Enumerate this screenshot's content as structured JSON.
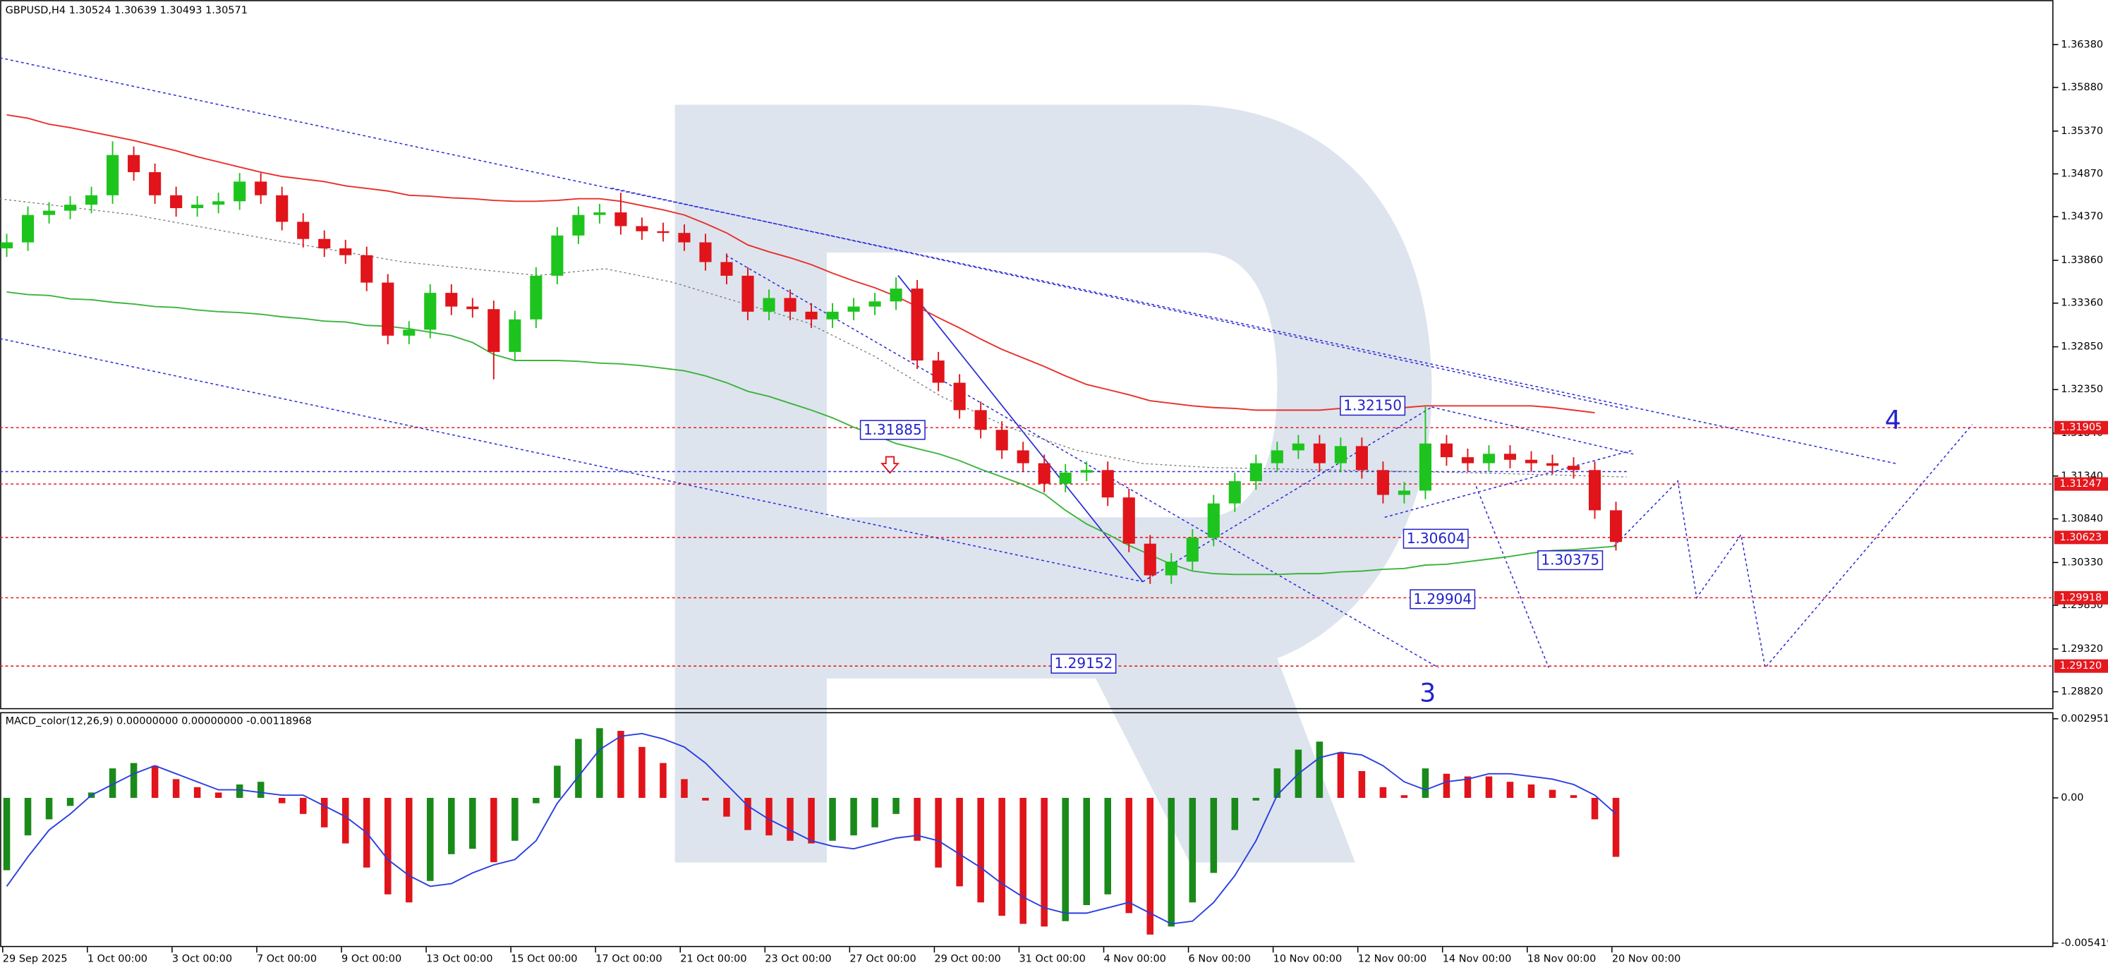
{
  "chart_data": [
    {
      "type": "candlestick",
      "title": "GBPUSD,H4  1.30524 1.30639 1.30493 1.30571",
      "categories": [
        "29 Sep 2025",
        null,
        null,
        null,
        "1 Oct 00:00",
        null,
        null,
        null,
        "3 Oct 00:00",
        null,
        null,
        null,
        "7 Oct 00:00",
        null,
        null,
        null,
        "9 Oct 00:00",
        null,
        null,
        null,
        "13 Oct 00:00",
        null,
        null,
        null,
        "15 Oct 00:00",
        null,
        null,
        null,
        "17 Oct 00:00",
        null,
        null,
        null,
        "21 Oct 00:00",
        null,
        null,
        null,
        "23 Oct 00:00",
        null,
        null,
        null,
        "27 Oct 00:00",
        null,
        null,
        null,
        "29 Oct 00:00",
        null,
        null,
        null,
        "31 Oct 00:00",
        null,
        null,
        null,
        "4 Nov 00:00",
        null,
        null,
        null,
        "6 Nov 00:00",
        null,
        null,
        null,
        "10 Nov 00:00",
        null,
        null,
        null,
        "12 Nov 00:00",
        null,
        null,
        null,
        "14 Nov 00:00",
        null,
        null,
        null,
        "18 Nov 00:00",
        null,
        null,
        null,
        "20 Nov 00:00"
      ],
      "open": [
        1.34,
        1.3407,
        1.3439,
        1.3444,
        1.3451,
        1.3462,
        1.3509,
        1.3489,
        1.3462,
        1.3447,
        1.3451,
        1.3455,
        1.3478,
        1.3462,
        1.3431,
        1.3411,
        1.34,
        1.3392,
        1.336,
        1.3298,
        1.3305,
        1.3348,
        1.3332,
        1.3329,
        1.3279,
        1.3317,
        1.3368,
        1.3415,
        1.3439,
        1.3442,
        1.3426,
        1.342,
        1.3418,
        1.3407,
        1.3384,
        1.3368,
        1.3326,
        1.3342,
        1.3326,
        1.3317,
        1.3326,
        1.3332,
        1.3338,
        1.3353,
        1.3269,
        1.3243,
        1.3211,
        1.3188,
        1.3164,
        1.3149,
        1.3125,
        1.3138,
        1.3141,
        1.3109,
        1.3055,
        1.3018,
        1.3034,
        1.3062,
        1.3102,
        1.3128,
        1.3149,
        1.3164,
        1.3172,
        1.3149,
        1.3169,
        1.3141,
        1.3112,
        1.3117,
        1.3172,
        1.3156,
        1.3149,
        1.316,
        1.3153,
        1.3149,
        1.3146,
        1.3141,
        1.3094
      ],
      "high": [
        1.3417,
        1.3449,
        1.3454,
        1.3461,
        1.3472,
        1.3525,
        1.3519,
        1.3499,
        1.3472,
        1.3461,
        1.3465,
        1.3488,
        1.3488,
        1.3472,
        1.3441,
        1.3421,
        1.341,
        1.3402,
        1.337,
        1.3315,
        1.3358,
        1.3358,
        1.3342,
        1.3339,
        1.3327,
        1.3378,
        1.3425,
        1.3449,
        1.3452,
        1.3465,
        1.3436,
        1.343,
        1.3428,
        1.3417,
        1.3394,
        1.3378,
        1.3352,
        1.3352,
        1.3336,
        1.3336,
        1.3342,
        1.3348,
        1.3366,
        1.3363,
        1.3279,
        1.3253,
        1.3221,
        1.3198,
        1.3174,
        1.3159,
        1.3148,
        1.3151,
        1.3151,
        1.3119,
        1.3065,
        1.3044,
        1.3072,
        1.3112,
        1.3138,
        1.3159,
        1.3174,
        1.3182,
        1.3182,
        1.3179,
        1.3179,
        1.3151,
        1.3127,
        1.3215,
        1.3182,
        1.3166,
        1.317,
        1.317,
        1.3163,
        1.3159,
        1.3156,
        1.3151,
        1.3104
      ],
      "low": [
        1.339,
        1.3397,
        1.3429,
        1.3434,
        1.3441,
        1.3452,
        1.3479,
        1.3452,
        1.3437,
        1.3437,
        1.3441,
        1.3445,
        1.3452,
        1.3421,
        1.3401,
        1.339,
        1.3382,
        1.335,
        1.3288,
        1.3288,
        1.3295,
        1.3322,
        1.3319,
        1.3247,
        1.3269,
        1.3307,
        1.3358,
        1.3405,
        1.3429,
        1.3416,
        1.341,
        1.3408,
        1.3397,
        1.3374,
        1.3358,
        1.3316,
        1.3316,
        1.3316,
        1.3307,
        1.3307,
        1.3316,
        1.3322,
        1.3328,
        1.3259,
        1.3233,
        1.3201,
        1.3178,
        1.3154,
        1.3139,
        1.3115,
        1.3115,
        1.3128,
        1.3099,
        1.3045,
        1.3008,
        1.3008,
        1.3024,
        1.3052,
        1.3092,
        1.3118,
        1.3139,
        1.3154,
        1.3139,
        1.3139,
        1.3131,
        1.3102,
        1.3102,
        1.3107,
        1.3146,
        1.3139,
        1.3139,
        1.3143,
        1.3139,
        1.3136,
        1.3131,
        1.3084,
        1.3047
      ],
      "close": [
        1.3407,
        1.3439,
        1.3444,
        1.3451,
        1.3462,
        1.3509,
        1.3489,
        1.3462,
        1.3447,
        1.3451,
        1.3455,
        1.3478,
        1.3462,
        1.3431,
        1.3411,
        1.34,
        1.3392,
        1.336,
        1.3298,
        1.3305,
        1.3348,
        1.3332,
        1.3329,
        1.3279,
        1.3317,
        1.3368,
        1.3415,
        1.3439,
        1.3442,
        1.3426,
        1.342,
        1.3418,
        1.3407,
        1.3384,
        1.3368,
        1.3326,
        1.3342,
        1.3326,
        1.3317,
        1.3326,
        1.3332,
        1.3338,
        1.3353,
        1.3269,
        1.3243,
        1.3211,
        1.3188,
        1.3164,
        1.3149,
        1.3125,
        1.3138,
        1.3141,
        1.3109,
        1.3055,
        1.3018,
        1.3034,
        1.3062,
        1.3102,
        1.3128,
        1.3149,
        1.3164,
        1.3172,
        1.3149,
        1.3169,
        1.3141,
        1.3112,
        1.3117,
        1.3172,
        1.3156,
        1.3149,
        1.316,
        1.3153,
        1.3149,
        1.3146,
        1.3141,
        1.3094,
        1.3057
      ],
      "up_color": "#1ec41e",
      "down_color": "#e0141a",
      "lines": [
        {
          "color": "#e8302a",
          "values": [
            1.3556,
            1.3552,
            1.3545,
            1.3541,
            1.3536,
            1.3531,
            1.3526,
            1.352,
            1.3514,
            1.3507,
            1.3501,
            1.3495,
            1.3489,
            1.3484,
            1.3481,
            1.3478,
            1.3473,
            1.347,
            1.3467,
            1.3462,
            1.3461,
            1.3459,
            1.3458,
            1.3456,
            1.3455,
            1.3455,
            1.3456,
            1.3458,
            1.3458,
            1.3455,
            1.345,
            1.3445,
            1.3439,
            1.3429,
            1.3418,
            1.3404,
            1.3396,
            1.3389,
            1.3381,
            1.3371,
            1.3362,
            1.3354,
            1.3344,
            1.3332,
            1.3319,
            1.3307,
            1.3294,
            1.3282,
            1.3272,
            1.3262,
            1.3251,
            1.3241,
            1.3235,
            1.3229,
            1.3222,
            1.3219,
            1.3216,
            1.3214,
            1.3213,
            1.3211,
            1.3211,
            1.3211,
            1.3211,
            1.3213,
            1.3213,
            1.3214,
            1.3214,
            1.3216,
            1.3216,
            1.3216,
            1.3216,
            1.3216,
            1.3216,
            1.3214,
            1.3211,
            1.3208,
            null
          ]
        },
        {
          "color": "#3cb43c",
          "values": [
            1.3349,
            1.3346,
            1.3345,
            1.3341,
            1.334,
            1.3337,
            1.3335,
            1.3332,
            1.3331,
            1.3328,
            1.3326,
            1.3325,
            1.3323,
            1.332,
            1.3318,
            1.3315,
            1.3314,
            1.331,
            1.3309,
            1.3306,
            1.3302,
            1.3298,
            1.329,
            1.3276,
            1.3269,
            1.3269,
            1.3269,
            1.3268,
            1.3266,
            1.3265,
            1.3263,
            1.326,
            1.3257,
            1.3251,
            1.3243,
            1.3233,
            1.3227,
            1.3219,
            1.3211,
            1.3202,
            1.3191,
            1.3182,
            1.3172,
            1.3166,
            1.316,
            1.3152,
            1.3142,
            1.3133,
            1.3124,
            1.3113,
            1.3094,
            1.3078,
            1.3066,
            1.3053,
            1.3042,
            1.3031,
            1.3023,
            1.302,
            1.3019,
            1.3019,
            1.3019,
            1.302,
            1.302,
            1.3022,
            1.3023,
            1.3025,
            1.3026,
            1.303,
            1.3031,
            1.3034,
            1.3037,
            1.304,
            1.3044,
            1.3047,
            1.3048,
            1.305,
            1.3052
          ]
        }
      ],
      "ylim": [
        1.2863,
        1.3687
      ],
      "yticks": [
        {
          "value": 1.3638,
          "label": "1.36380"
        },
        {
          "value": 1.3588,
          "label": "1.35880"
        },
        {
          "value": 1.3537,
          "label": "1.35370"
        },
        {
          "value": 1.3487,
          "label": "1.34870"
        },
        {
          "value": 1.3437,
          "label": "1.34370"
        },
        {
          "value": 1.3386,
          "label": "1.33860"
        },
        {
          "value": 1.3336,
          "label": "1.33360"
        },
        {
          "value": 1.3285,
          "label": "1.32850"
        },
        {
          "value": 1.3235,
          "label": "1.32350"
        },
        {
          "value": 1.3184,
          "label": "1.31840"
        },
        {
          "value": 1.3134,
          "label": "1.31340"
        },
        {
          "value": 1.3084,
          "label": "1.30840"
        },
        {
          "value": 1.3033,
          "label": "1.30330"
        },
        {
          "value": 1.2983,
          "label": "1.29830"
        },
        {
          "value": 1.2932,
          "label": "1.29320"
        },
        {
          "value": 1.2882,
          "label": "1.28820"
        }
      ],
      "price_tags": [
        1.31905,
        1.31247,
        1.30623,
        1.29918,
        {
          "value": 1.2912,
          "label": "1.29120"
        }
      ],
      "tag_color": "#e5181e",
      "price_labels": [
        "1.31885",
        "1.32150",
        "1.30604",
        "1.30375",
        "1.29904",
        "1.29152"
      ],
      "wave_labels": [
        "3",
        "4"
      ],
      "annotation_color": "#2222cc"
    },
    {
      "type": "macd",
      "title": "MACD_color(12,26,9) 0.00000000 0.00000000 -0.00118968",
      "values": [
        -0.0027,
        -0.0014,
        -0.0008,
        -0.0003,
        0.0002,
        0.0011,
        0.0013,
        0.0012,
        0.0007,
        0.0004,
        0.0002,
        0.0005,
        0.0006,
        -0.0002,
        -0.0006,
        -0.0011,
        -0.0017,
        -0.0026,
        -0.0036,
        -0.0039,
        -0.0031,
        -0.0021,
        -0.0019,
        -0.0024,
        -0.0016,
        -0.0002,
        0.0012,
        0.0022,
        0.0026,
        0.0025,
        0.0019,
        0.0013,
        0.0007,
        -0.0001,
        -0.0007,
        -0.0012,
        -0.0014,
        -0.0016,
        -0.0017,
        -0.0016,
        -0.0014,
        -0.0011,
        -0.0006,
        -0.0016,
        -0.0026,
        -0.0033,
        -0.0039,
        -0.0044,
        -0.0047,
        -0.0048,
        -0.0046,
        -0.004,
        -0.0036,
        -0.0043,
        -0.0051,
        -0.0048,
        -0.0039,
        -0.0028,
        -0.0012,
        -0.0001,
        0.0011,
        0.0018,
        0.0021,
        0.0017,
        0.001,
        0.0004,
        0.0001,
        0.0011,
        0.0009,
        0.0008,
        0.0008,
        0.0006,
        0.0005,
        0.0003,
        0.0001,
        -0.0008,
        -0.0022
      ],
      "signal": [
        -0.0033,
        -0.0022,
        -0.0012,
        -0.0006,
        0.0001,
        0.0005,
        0.0009,
        0.0012,
        0.0009,
        0.0006,
        0.0003,
        0.0003,
        0.0002,
        0.0001,
        0.0001,
        -0.0003,
        -0.0007,
        -0.0013,
        -0.0023,
        -0.0029,
        -0.0033,
        -0.0032,
        -0.0028,
        -0.0025,
        -0.0023,
        -0.0016,
        -0.0002,
        0.0008,
        0.0018,
        0.0023,
        0.0024,
        0.0022,
        0.0019,
        0.0013,
        0.0005,
        -0.0003,
        -0.0008,
        -0.0012,
        -0.0016,
        -0.0018,
        -0.0019,
        -0.0017,
        -0.0015,
        -0.0014,
        -0.0016,
        -0.0021,
        -0.0026,
        -0.0032,
        -0.0037,
        -0.0041,
        -0.0043,
        -0.0043,
        -0.0041,
        -0.0039,
        -0.0043,
        -0.0047,
        -0.0046,
        -0.0039,
        -0.0029,
        -0.0016,
        0.0001,
        0.0009,
        0.0015,
        0.0017,
        0.0016,
        0.0012,
        0.0006,
        0.0003,
        0.0006,
        0.0007,
        0.0009,
        0.0009,
        0.0008,
        0.0007,
        0.0005,
        0.0001,
        -0.0006
      ],
      "up_color": "#1a8a1a",
      "down_color": "#e0141a",
      "signal_color": "#2a3ee0",
      "ylim": [
        -0.0054195,
        0.0029514
      ],
      "yticks": [
        0.0029514,
        {
          "value": 0,
          "label": "0.00"
        },
        {
          "value": -0.0054195,
          "label": "-0.00541950"
        }
      ]
    }
  ]
}
